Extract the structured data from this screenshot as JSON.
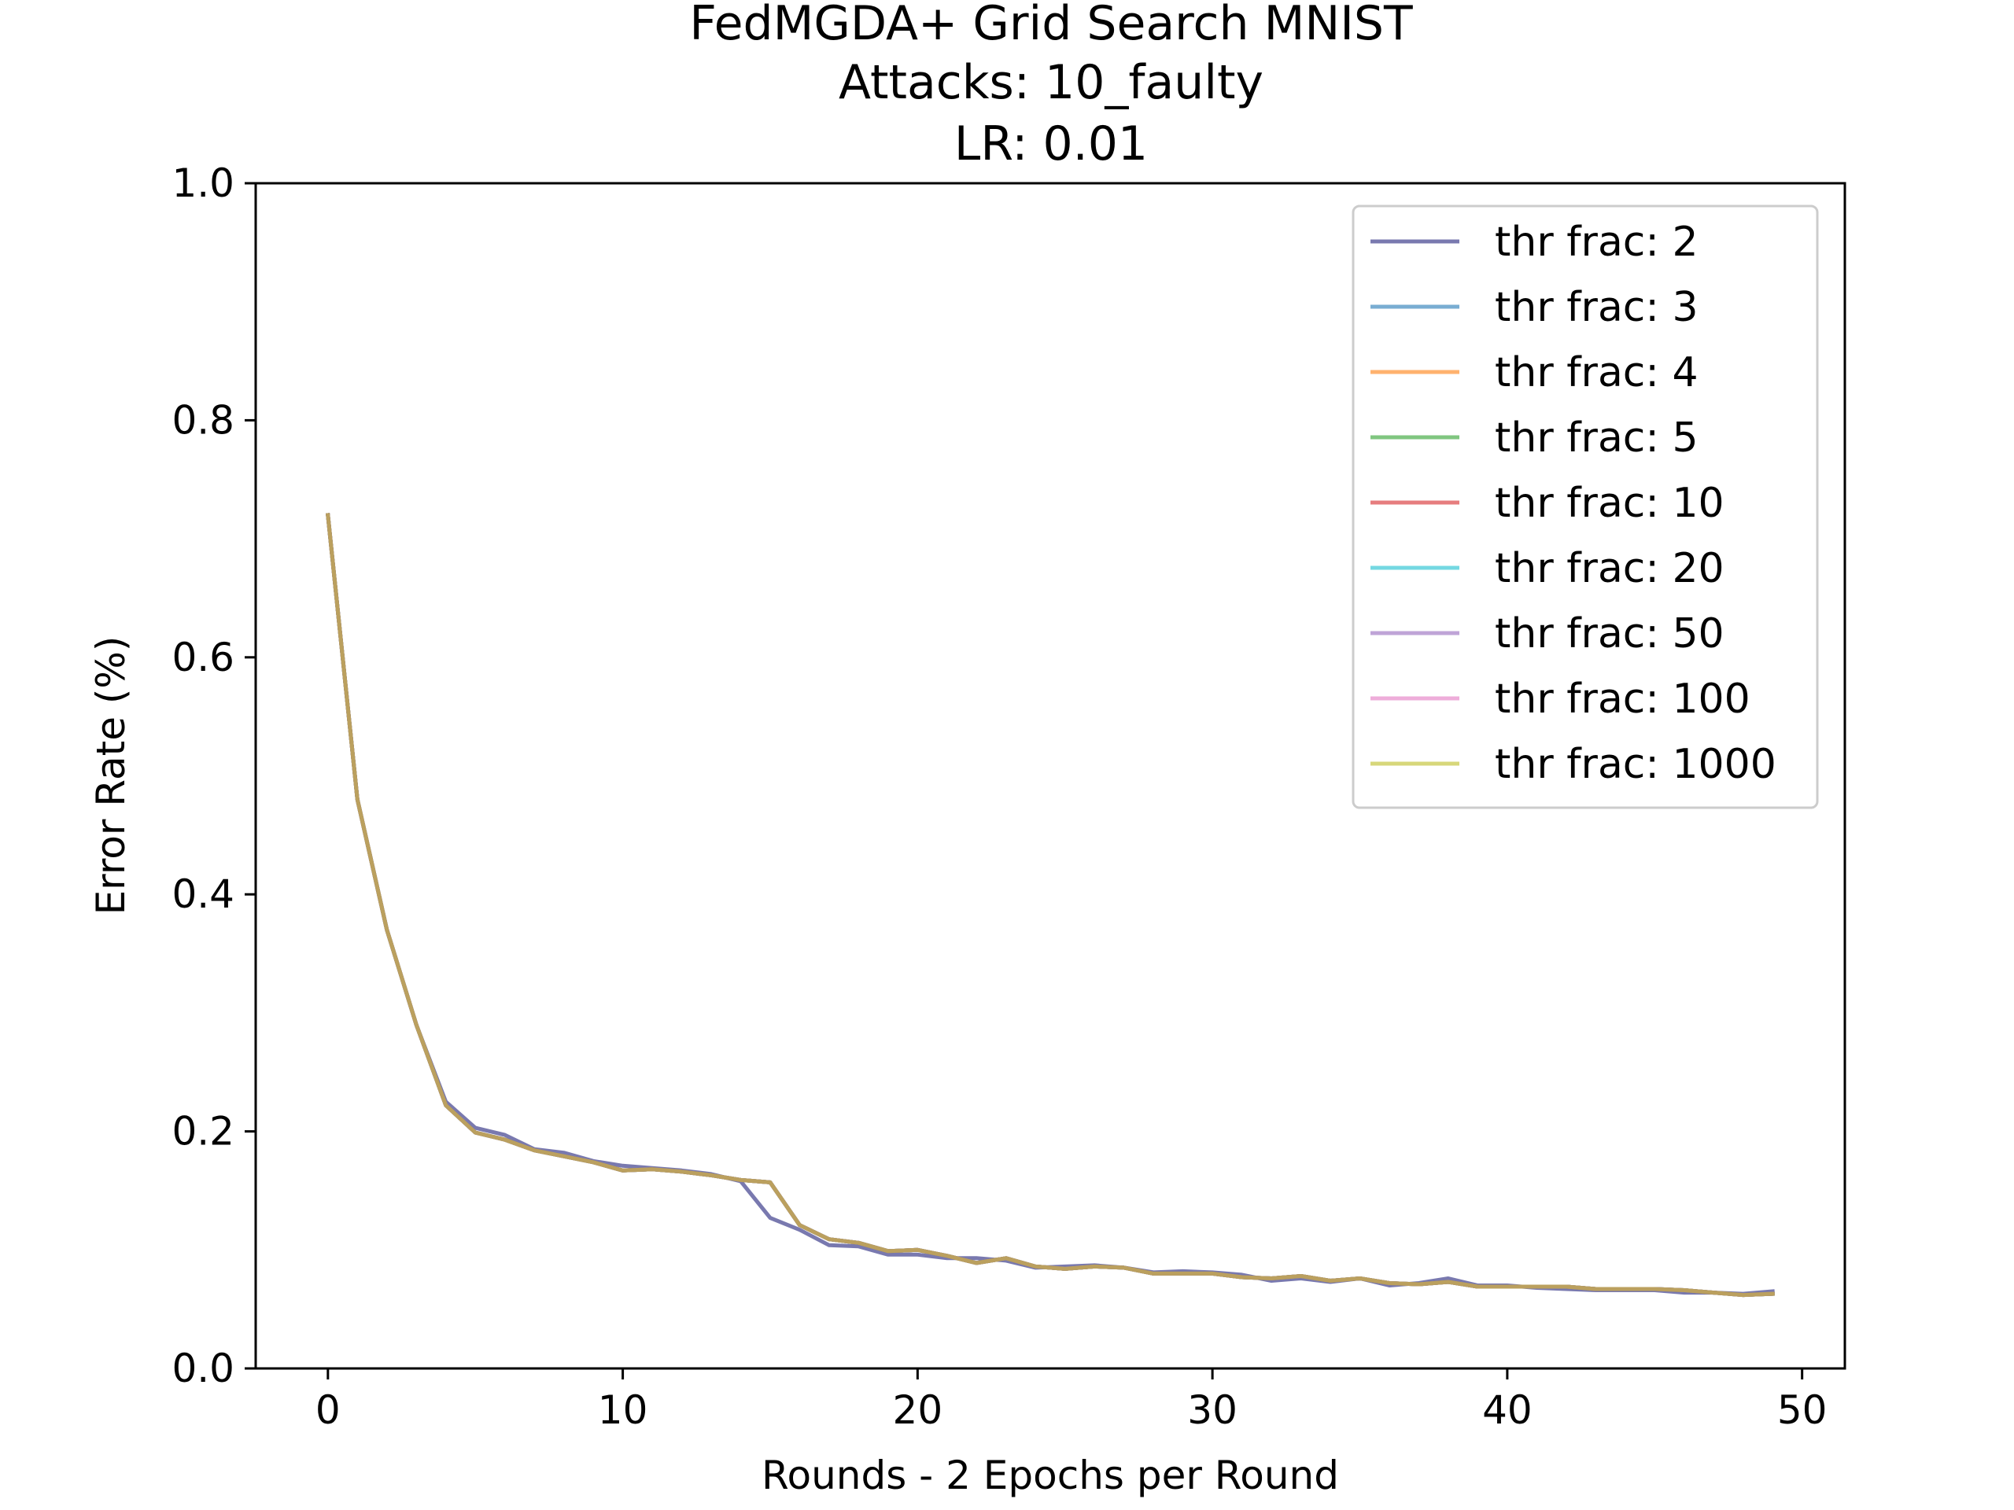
{
  "chart_data": {
    "type": "line",
    "title": [
      "FedMGDA+ Grid Search MNIST",
      "Attacks: 10_faulty",
      "LR: 0.01"
    ],
    "xlabel": "Rounds - 2 Epochs per Round",
    "ylabel": "Error Rate (%)",
    "xlim": [
      -2.45,
      51.45
    ],
    "ylim": [
      0.0,
      1.0
    ],
    "xticks": [
      0,
      10,
      20,
      30,
      40,
      50
    ],
    "yticks": [
      0.0,
      0.2,
      0.4,
      0.6,
      0.8,
      1.0
    ],
    "xtick_labels": [
      "0",
      "10",
      "20",
      "30",
      "40",
      "50"
    ],
    "ytick_labels": [
      "0.0",
      "0.2",
      "0.4",
      "0.6",
      "0.8",
      "1.0"
    ],
    "grid": false,
    "legend_position": "top-right",
    "x": [
      0,
      1,
      2,
      3,
      4,
      5,
      6,
      7,
      8,
      9,
      10,
      11,
      12,
      13,
      14,
      15,
      16,
      17,
      18,
      19,
      20,
      21,
      22,
      23,
      24,
      25,
      26,
      27,
      28,
      29,
      30,
      31,
      32,
      33,
      34,
      35,
      36,
      37,
      38,
      39,
      40,
      41,
      42,
      43,
      44,
      45,
      46,
      47,
      48,
      49
    ],
    "series": [
      {
        "name": "thr frac: 2",
        "color": "#1f1f7a",
        "values": [
          0.72,
          0.48,
          0.37,
          0.29,
          0.225,
          0.203,
          0.197,
          0.185,
          0.182,
          0.175,
          0.171,
          0.169,
          0.167,
          0.164,
          0.158,
          0.127,
          0.117,
          0.104,
          0.103,
          0.096,
          0.096,
          0.093,
          0.093,
          0.091,
          0.085,
          0.086,
          0.087,
          0.085,
          0.081,
          0.082,
          0.081,
          0.079,
          0.074,
          0.076,
          0.073,
          0.076,
          0.07,
          0.072,
          0.076,
          0.07,
          0.07,
          0.068,
          0.067,
          0.066,
          0.066,
          0.066,
          0.064,
          0.064,
          0.063,
          0.065
        ]
      },
      {
        "name": "thr frac: 3",
        "color": "#1f77b4",
        "values": [
          0.72,
          0.48,
          0.37,
          0.29,
          0.222,
          0.199,
          0.193,
          0.184,
          0.179,
          0.174,
          0.167,
          0.168,
          0.166,
          0.163,
          0.159,
          0.157,
          0.121,
          0.109,
          0.106,
          0.099,
          0.1,
          0.095,
          0.089,
          0.093,
          0.086,
          0.084,
          0.086,
          0.085,
          0.08,
          0.08,
          0.08,
          0.077,
          0.076,
          0.078,
          0.074,
          0.076,
          0.072,
          0.071,
          0.073,
          0.069,
          0.069,
          0.069,
          0.069,
          0.067,
          0.067,
          0.067,
          0.066,
          0.064,
          0.062,
          0.063
        ]
      },
      {
        "name": "thr frac: 4",
        "color": "#ff7f0e",
        "values": [
          0.72,
          0.48,
          0.37,
          0.29,
          0.222,
          0.199,
          0.193,
          0.184,
          0.179,
          0.174,
          0.167,
          0.168,
          0.166,
          0.163,
          0.159,
          0.157,
          0.121,
          0.109,
          0.106,
          0.099,
          0.1,
          0.095,
          0.089,
          0.093,
          0.086,
          0.084,
          0.086,
          0.085,
          0.08,
          0.08,
          0.08,
          0.077,
          0.076,
          0.078,
          0.074,
          0.076,
          0.072,
          0.071,
          0.073,
          0.069,
          0.069,
          0.069,
          0.069,
          0.067,
          0.067,
          0.067,
          0.066,
          0.064,
          0.062,
          0.063
        ]
      },
      {
        "name": "thr frac: 5",
        "color": "#2ca02c",
        "values": [
          0.72,
          0.48,
          0.37,
          0.29,
          0.222,
          0.199,
          0.193,
          0.184,
          0.179,
          0.174,
          0.167,
          0.168,
          0.166,
          0.163,
          0.159,
          0.157,
          0.121,
          0.109,
          0.106,
          0.099,
          0.1,
          0.095,
          0.089,
          0.093,
          0.086,
          0.084,
          0.086,
          0.085,
          0.08,
          0.08,
          0.08,
          0.077,
          0.076,
          0.078,
          0.074,
          0.076,
          0.072,
          0.071,
          0.073,
          0.069,
          0.069,
          0.069,
          0.069,
          0.067,
          0.067,
          0.067,
          0.066,
          0.064,
          0.062,
          0.063
        ]
      },
      {
        "name": "thr frac: 10",
        "color": "#d62728",
        "values": [
          0.72,
          0.48,
          0.37,
          0.29,
          0.222,
          0.199,
          0.193,
          0.184,
          0.179,
          0.174,
          0.167,
          0.168,
          0.166,
          0.163,
          0.159,
          0.157,
          0.121,
          0.109,
          0.106,
          0.099,
          0.1,
          0.095,
          0.089,
          0.093,
          0.086,
          0.084,
          0.086,
          0.085,
          0.08,
          0.08,
          0.08,
          0.077,
          0.076,
          0.078,
          0.074,
          0.076,
          0.072,
          0.071,
          0.073,
          0.069,
          0.069,
          0.069,
          0.069,
          0.067,
          0.067,
          0.067,
          0.066,
          0.064,
          0.062,
          0.063
        ]
      },
      {
        "name": "thr frac: 20",
        "color": "#17becf",
        "values": [
          0.72,
          0.48,
          0.37,
          0.29,
          0.222,
          0.199,
          0.193,
          0.184,
          0.179,
          0.174,
          0.167,
          0.168,
          0.166,
          0.163,
          0.159,
          0.157,
          0.121,
          0.109,
          0.106,
          0.099,
          0.1,
          0.095,
          0.089,
          0.093,
          0.086,
          0.084,
          0.086,
          0.085,
          0.08,
          0.08,
          0.08,
          0.077,
          0.076,
          0.078,
          0.074,
          0.076,
          0.072,
          0.071,
          0.073,
          0.069,
          0.069,
          0.069,
          0.069,
          0.067,
          0.067,
          0.067,
          0.066,
          0.064,
          0.062,
          0.063
        ]
      },
      {
        "name": "thr frac: 50",
        "color": "#9467bd",
        "values": [
          0.72,
          0.48,
          0.37,
          0.29,
          0.222,
          0.199,
          0.193,
          0.184,
          0.179,
          0.174,
          0.167,
          0.168,
          0.166,
          0.163,
          0.159,
          0.157,
          0.121,
          0.109,
          0.106,
          0.099,
          0.1,
          0.095,
          0.089,
          0.093,
          0.086,
          0.084,
          0.086,
          0.085,
          0.08,
          0.08,
          0.08,
          0.077,
          0.076,
          0.078,
          0.074,
          0.076,
          0.072,
          0.071,
          0.073,
          0.069,
          0.069,
          0.069,
          0.069,
          0.067,
          0.067,
          0.067,
          0.066,
          0.064,
          0.062,
          0.063
        ]
      },
      {
        "name": "thr frac: 100",
        "color": "#e377c2",
        "values": [
          0.72,
          0.48,
          0.37,
          0.29,
          0.222,
          0.199,
          0.193,
          0.184,
          0.179,
          0.174,
          0.167,
          0.168,
          0.166,
          0.163,
          0.159,
          0.157,
          0.121,
          0.109,
          0.106,
          0.099,
          0.1,
          0.095,
          0.089,
          0.093,
          0.086,
          0.084,
          0.086,
          0.085,
          0.08,
          0.08,
          0.08,
          0.077,
          0.076,
          0.078,
          0.074,
          0.076,
          0.072,
          0.071,
          0.073,
          0.069,
          0.069,
          0.069,
          0.069,
          0.067,
          0.067,
          0.067,
          0.066,
          0.064,
          0.062,
          0.063
        ]
      },
      {
        "name": "thr frac: 1000",
        "color": "#bcbd22",
        "values": [
          0.72,
          0.48,
          0.37,
          0.29,
          0.222,
          0.199,
          0.193,
          0.184,
          0.179,
          0.174,
          0.167,
          0.168,
          0.166,
          0.163,
          0.159,
          0.157,
          0.121,
          0.109,
          0.106,
          0.099,
          0.1,
          0.095,
          0.089,
          0.093,
          0.086,
          0.084,
          0.086,
          0.085,
          0.08,
          0.08,
          0.08,
          0.077,
          0.076,
          0.078,
          0.074,
          0.076,
          0.072,
          0.071,
          0.073,
          0.069,
          0.069,
          0.069,
          0.069,
          0.067,
          0.067,
          0.067,
          0.066,
          0.064,
          0.062,
          0.063
        ]
      }
    ]
  }
}
